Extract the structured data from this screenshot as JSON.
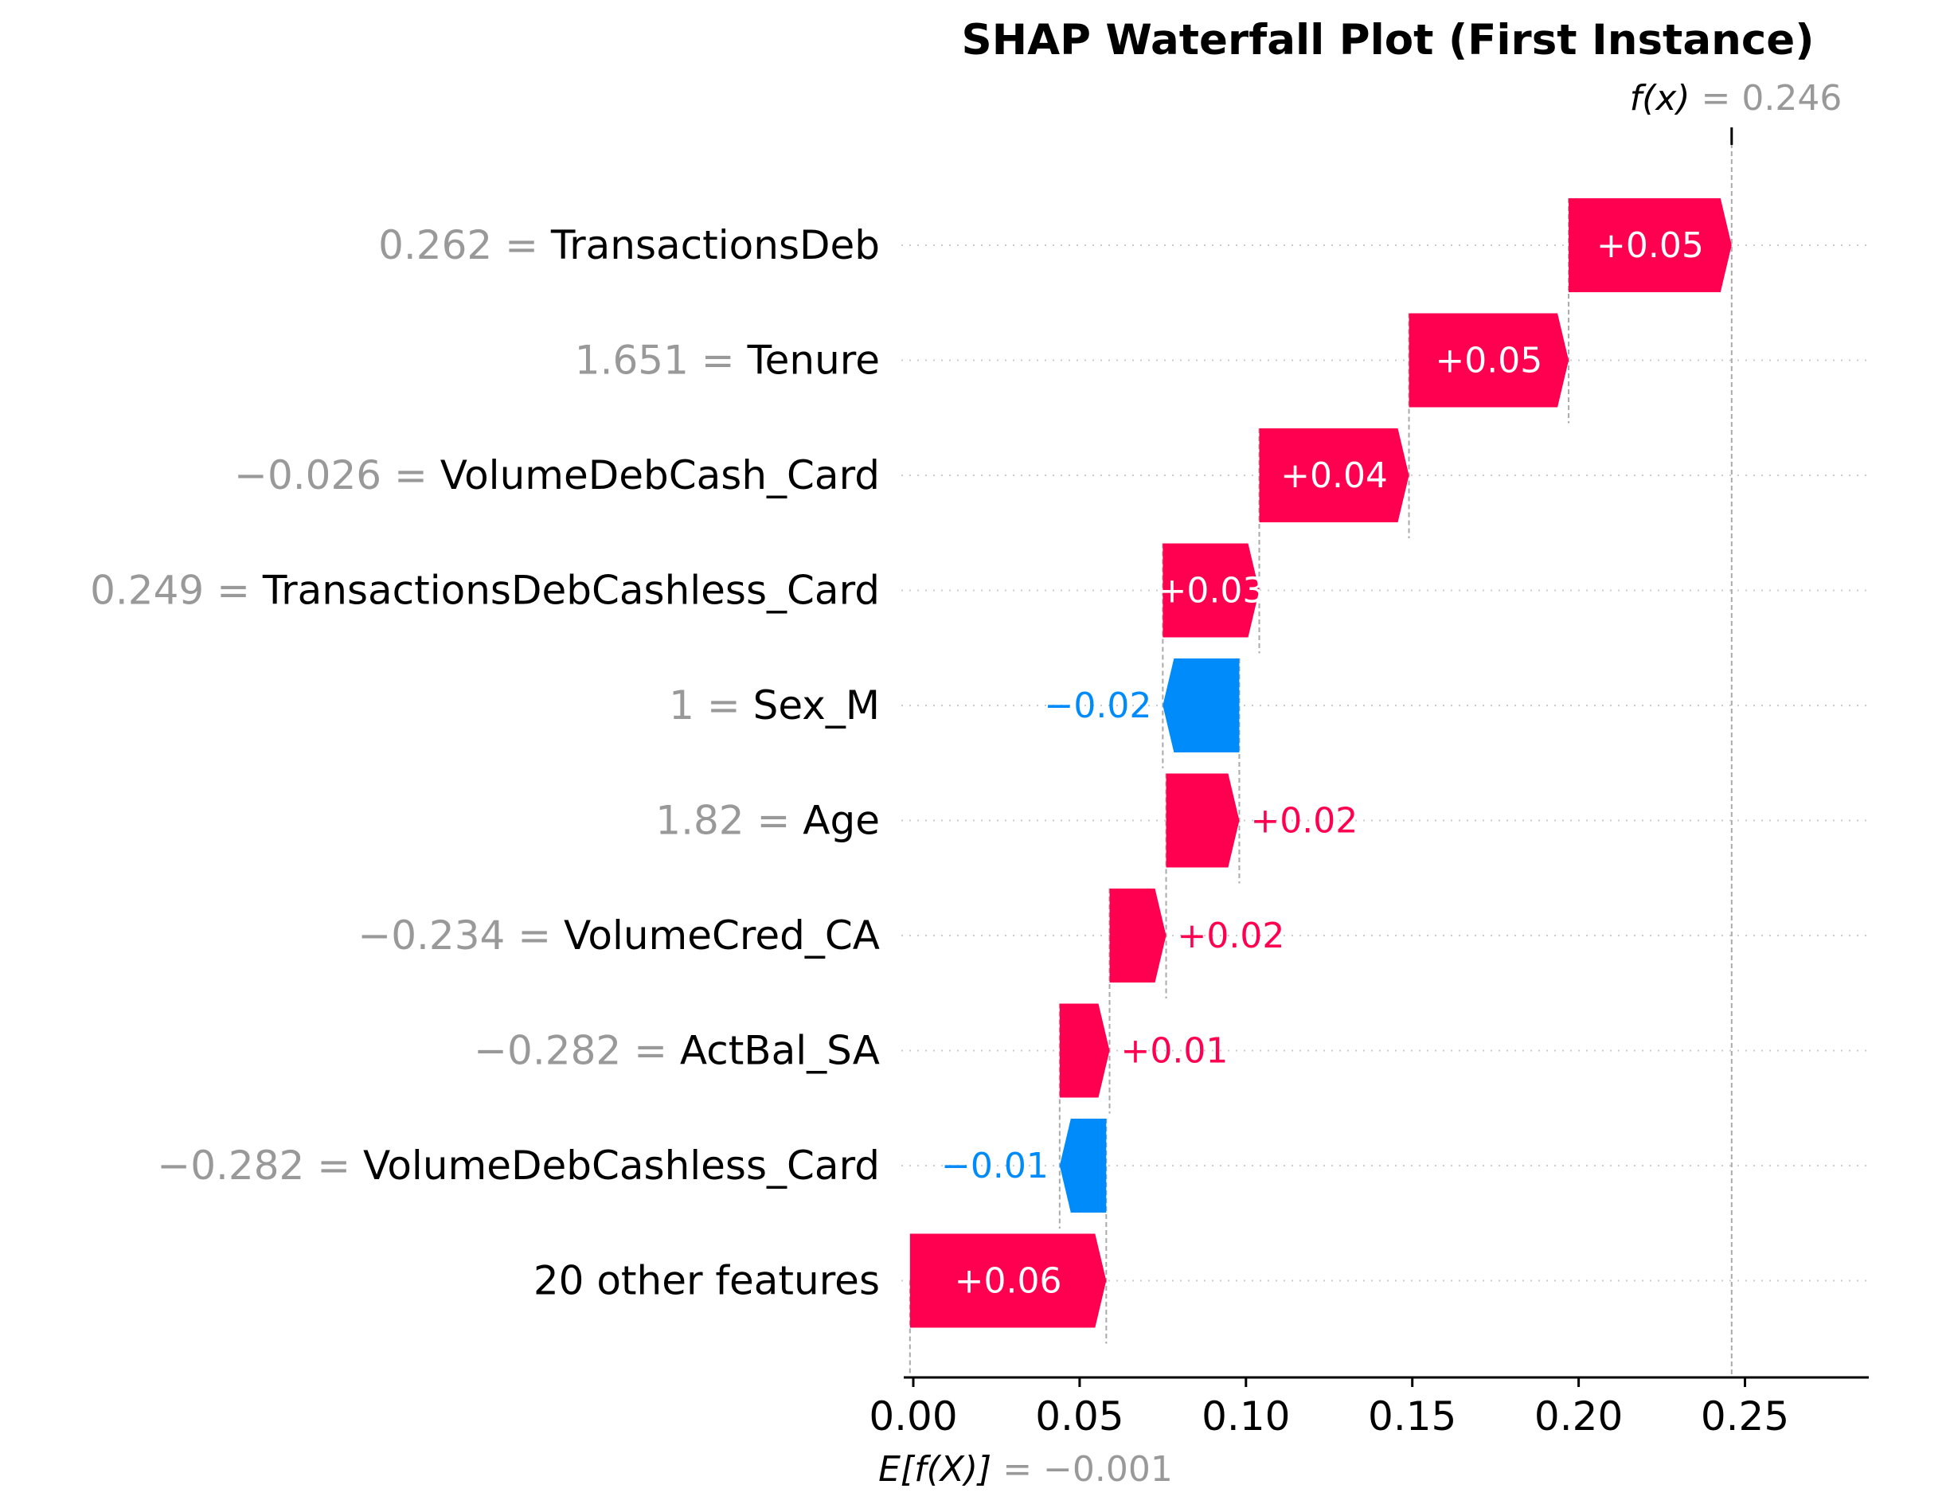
{
  "chart_data": {
    "type": "waterfall",
    "title": "SHAP Waterfall Plot (First Instance)",
    "base_value": -0.001,
    "output_value": 0.246,
    "fx_label": {
      "prefix": "f(x)",
      "value": " = 0.246"
    },
    "ex_label": {
      "prefix": "E[f(X)]",
      "value": " = −0.001"
    },
    "xlim": [
      -0.001,
      0.287
    ],
    "xticks": [
      0.0,
      0.05,
      0.1,
      0.15,
      0.2,
      0.25
    ],
    "xtick_labels": [
      "0.00",
      "0.05",
      "0.10",
      "0.15",
      "0.20",
      "0.25"
    ],
    "grid": "dotted horizontal",
    "colors": {
      "positive": "#ff0051",
      "negative": "#008bfb",
      "feature_value": "#999999",
      "text": "#000000"
    },
    "features": [
      {
        "value_text": "0.262 = ",
        "name": "TransactionsDeb",
        "shap": 0.05,
        "label": "+0.05",
        "start": 0.197,
        "end": 0.246
      },
      {
        "value_text": "1.651 = ",
        "name": "Tenure",
        "shap": 0.05,
        "label": "+0.05",
        "start": 0.149,
        "end": 0.197
      },
      {
        "value_text": "−0.026 = ",
        "name": "VolumeDebCash_Card",
        "shap": 0.04,
        "label": "+0.04",
        "start": 0.104,
        "end": 0.149
      },
      {
        "value_text": "0.249 = ",
        "name": "TransactionsDebCashless_Card",
        "shap": 0.03,
        "label": "+0.03",
        "start": 0.075,
        "end": 0.104
      },
      {
        "value_text": "1 = ",
        "name": "Sex_M",
        "shap": -0.02,
        "label": "−0.02",
        "start": 0.098,
        "end": 0.075
      },
      {
        "value_text": "1.82 = ",
        "name": "Age",
        "shap": 0.02,
        "label": "+0.02",
        "start": 0.076,
        "end": 0.098
      },
      {
        "value_text": "−0.234 = ",
        "name": "VolumeCred_CA",
        "shap": 0.02,
        "label": "+0.02",
        "start": 0.059,
        "end": 0.076
      },
      {
        "value_text": "−0.282 = ",
        "name": "ActBal_SA",
        "shap": 0.01,
        "label": "+0.01",
        "start": 0.044,
        "end": 0.059
      },
      {
        "value_text": "−0.282 = ",
        "name": "VolumeDebCashless_Card",
        "shap": -0.01,
        "label": "−0.01",
        "start": 0.058,
        "end": 0.044
      },
      {
        "value_text": "",
        "name": "20 other features",
        "shap": 0.06,
        "label": "+0.06",
        "start": -0.001,
        "end": 0.058
      }
    ]
  }
}
